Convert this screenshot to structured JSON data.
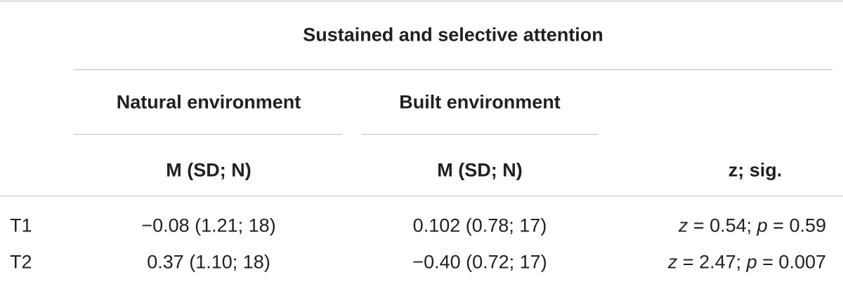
{
  "table": {
    "group_header": "Sustained and selective attention",
    "subgroups": [
      "Natural environment",
      "Built environment"
    ],
    "column_headers": [
      "M (SD; N)",
      "M (SD; N)",
      "z; sig."
    ],
    "rows": [
      [
        "T1",
        "−0.08 (1.21; 18)",
        "0.102 (0.78; 17)",
        [
          "z",
          " = 0.54; ",
          "p",
          " = 0.59"
        ]
      ],
      [
        "T2",
        "0.37 (1.10; 18)",
        "−0.40 (0.72; 17)",
        [
          "z",
          " = 2.47; ",
          "p",
          " = 0.007"
        ]
      ]
    ]
  }
}
